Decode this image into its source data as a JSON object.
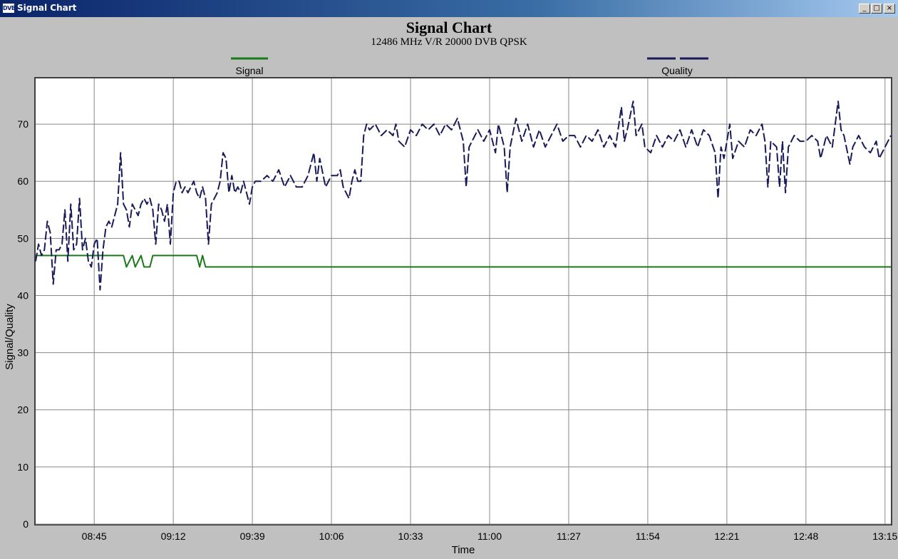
{
  "window": {
    "title": "Signal Chart",
    "icon": "DVB",
    "min_glyph": "_",
    "max_glyph": "□",
    "close_glyph": "×"
  },
  "colors": {
    "signal": "#1a7a1a",
    "quality": "#1a1a5a",
    "background": "#c0c0c0",
    "plot_area": "#ffffff",
    "grid": "#888888"
  },
  "chart_data": {
    "type": "line",
    "title": "Signal Chart",
    "subtitle": "12486 MHz V/R 20000 DVB QPSK",
    "xlabel": "Time",
    "ylabel": "Signal/Quality",
    "ylim": [
      0,
      78
    ],
    "xlim": [
      "08:25",
      "13:17"
    ],
    "yticks": [
      0,
      10,
      20,
      30,
      40,
      50,
      60,
      70
    ],
    "xticks": [
      "08:45",
      "09:12",
      "09:39",
      "10:06",
      "10:33",
      "11:00",
      "11:27",
      "11:54",
      "12:21",
      "12:48",
      "13:15"
    ],
    "grid": true,
    "legend_position": "top",
    "series": [
      {
        "name": "Signal",
        "style": "solid",
        "points": [
          [
            "08:25",
            47
          ],
          [
            "08:55",
            47
          ],
          [
            "08:56",
            45
          ],
          [
            "08:58",
            47
          ],
          [
            "08:59",
            45
          ],
          [
            "09:01",
            47
          ],
          [
            "09:02",
            45
          ],
          [
            "09:04",
            45
          ],
          [
            "09:05",
            47
          ],
          [
            "09:20",
            47
          ],
          [
            "09:21",
            45
          ],
          [
            "09:22",
            47
          ],
          [
            "09:23",
            45
          ],
          [
            "13:17",
            45
          ]
        ]
      },
      {
        "name": "Quality",
        "style": "dashed",
        "points": [
          [
            "08:25",
            46
          ],
          [
            "08:26",
            49
          ],
          [
            "08:27",
            47
          ],
          [
            "08:28",
            48
          ],
          [
            "08:29",
            53
          ],
          [
            "08:30",
            51
          ],
          [
            "08:31",
            42
          ],
          [
            "08:32",
            48
          ],
          [
            "08:33",
            48
          ],
          [
            "08:34",
            49
          ],
          [
            "08:35",
            55
          ],
          [
            "08:36",
            46
          ],
          [
            "08:37",
            56
          ],
          [
            "08:38",
            48
          ],
          [
            "08:39",
            49
          ],
          [
            "08:40",
            57
          ],
          [
            "08:41",
            48
          ],
          [
            "08:42",
            50
          ],
          [
            "08:43",
            46
          ],
          [
            "08:44",
            45
          ],
          [
            "08:45",
            49
          ],
          [
            "08:46",
            50
          ],
          [
            "08:47",
            41
          ],
          [
            "08:48",
            48
          ],
          [
            "08:49",
            52
          ],
          [
            "08:50",
            53
          ],
          [
            "08:51",
            52
          ],
          [
            "08:52",
            54
          ],
          [
            "08:53",
            56
          ],
          [
            "08:54",
            65
          ],
          [
            "08:55",
            56
          ],
          [
            "08:56",
            55
          ],
          [
            "08:57",
            52
          ],
          [
            "08:58",
            56
          ],
          [
            "08:59",
            55
          ],
          [
            "09:00",
            54
          ],
          [
            "09:01",
            56
          ],
          [
            "09:02",
            57
          ],
          [
            "09:03",
            56
          ],
          [
            "09:04",
            57
          ],
          [
            "09:05",
            55
          ],
          [
            "09:06",
            49
          ],
          [
            "09:07",
            56
          ],
          [
            "09:08",
            55
          ],
          [
            "09:09",
            53
          ],
          [
            "09:10",
            56
          ],
          [
            "09:11",
            49
          ],
          [
            "09:12",
            58
          ],
          [
            "09:13",
            60
          ],
          [
            "09:14",
            60
          ],
          [
            "09:15",
            58
          ],
          [
            "09:16",
            59
          ],
          [
            "09:17",
            58
          ],
          [
            "09:18",
            59
          ],
          [
            "09:19",
            60
          ],
          [
            "09:20",
            58
          ],
          [
            "09:21",
            57
          ],
          [
            "09:22",
            59
          ],
          [
            "09:23",
            57
          ],
          [
            "09:24",
            49
          ],
          [
            "09:25",
            56
          ],
          [
            "09:26",
            57
          ],
          [
            "09:27",
            58
          ],
          [
            "09:28",
            60
          ],
          [
            "09:29",
            65
          ],
          [
            "09:30",
            64
          ],
          [
            "09:31",
            58
          ],
          [
            "09:32",
            61
          ],
          [
            "09:33",
            58
          ],
          [
            "09:34",
            59
          ],
          [
            "09:35",
            58
          ],
          [
            "09:36",
            60
          ],
          [
            "09:37",
            58
          ],
          [
            "09:38",
            56
          ],
          [
            "09:39",
            59
          ],
          [
            "09:40",
            60
          ],
          [
            "09:42",
            60
          ],
          [
            "09:44",
            61
          ],
          [
            "09:46",
            60
          ],
          [
            "09:48",
            62
          ],
          [
            "09:50",
            59
          ],
          [
            "09:52",
            61
          ],
          [
            "09:54",
            59
          ],
          [
            "09:56",
            59
          ],
          [
            "09:58",
            61
          ],
          [
            "10:00",
            65
          ],
          [
            "10:01",
            60
          ],
          [
            "10:02",
            64
          ],
          [
            "10:04",
            59
          ],
          [
            "10:06",
            61
          ],
          [
            "10:08",
            61
          ],
          [
            "10:09",
            62
          ],
          [
            "10:10",
            59
          ],
          [
            "10:11",
            58
          ],
          [
            "10:12",
            57
          ],
          [
            "10:13",
            60
          ],
          [
            "10:14",
            62
          ],
          [
            "10:15",
            60
          ],
          [
            "10:16",
            60
          ],
          [
            "10:17",
            68
          ],
          [
            "10:18",
            70
          ],
          [
            "10:19",
            69
          ],
          [
            "10:21",
            70
          ],
          [
            "10:23",
            68
          ],
          [
            "10:25",
            69
          ],
          [
            "10:27",
            68
          ],
          [
            "10:28",
            70
          ],
          [
            "10:29",
            67
          ],
          [
            "10:31",
            66
          ],
          [
            "10:33",
            69
          ],
          [
            "10:35",
            68
          ],
          [
            "10:37",
            70
          ],
          [
            "10:39",
            69
          ],
          [
            "10:41",
            70
          ],
          [
            "10:43",
            68
          ],
          [
            "10:45",
            70
          ],
          [
            "10:47",
            69
          ],
          [
            "10:49",
            71
          ],
          [
            "10:51",
            67
          ],
          [
            "10:52",
            59
          ],
          [
            "10:53",
            66
          ],
          [
            "10:54",
            67
          ],
          [
            "10:56",
            69
          ],
          [
            "10:58",
            67
          ],
          [
            "11:00",
            69
          ],
          [
            "11:02",
            65
          ],
          [
            "11:03",
            70
          ],
          [
            "11:05",
            66
          ],
          [
            "11:06",
            58
          ],
          [
            "11:07",
            66
          ],
          [
            "11:09",
            71
          ],
          [
            "11:11",
            67
          ],
          [
            "11:13",
            70
          ],
          [
            "11:15",
            66
          ],
          [
            "11:17",
            69
          ],
          [
            "11:19",
            66
          ],
          [
            "11:21",
            68
          ],
          [
            "11:23",
            70
          ],
          [
            "11:25",
            67
          ],
          [
            "11:27",
            68
          ],
          [
            "11:29",
            68
          ],
          [
            "11:31",
            66
          ],
          [
            "11:33",
            68
          ],
          [
            "11:35",
            67
          ],
          [
            "11:37",
            69
          ],
          [
            "11:39",
            66
          ],
          [
            "11:41",
            68
          ],
          [
            "11:43",
            66
          ],
          [
            "11:45",
            73
          ],
          [
            "11:46",
            67
          ],
          [
            "11:47",
            69
          ],
          [
            "11:49",
            74
          ],
          [
            "11:50",
            68
          ],
          [
            "11:52",
            70
          ],
          [
            "11:53",
            66
          ],
          [
            "11:55",
            65
          ],
          [
            "11:57",
            68
          ],
          [
            "11:59",
            66
          ],
          [
            "12:01",
            68
          ],
          [
            "12:03",
            67
          ],
          [
            "12:05",
            69
          ],
          [
            "12:07",
            66
          ],
          [
            "12:09",
            69
          ],
          [
            "12:11",
            66
          ],
          [
            "12:13",
            69
          ],
          [
            "12:15",
            68
          ],
          [
            "12:17",
            65
          ],
          [
            "12:18",
            57
          ],
          [
            "12:19",
            66
          ],
          [
            "12:20",
            64
          ],
          [
            "12:22",
            70
          ],
          [
            "12:23",
            64
          ],
          [
            "12:25",
            67
          ],
          [
            "12:27",
            66
          ],
          [
            "12:29",
            69
          ],
          [
            "12:31",
            68
          ],
          [
            "12:33",
            70
          ],
          [
            "12:34",
            67
          ],
          [
            "12:35",
            59
          ],
          [
            "12:36",
            67
          ],
          [
            "12:38",
            66
          ],
          [
            "12:39",
            59
          ],
          [
            "12:40",
            67
          ],
          [
            "12:41",
            58
          ],
          [
            "12:42",
            66
          ],
          [
            "12:44",
            68
          ],
          [
            "12:46",
            67
          ],
          [
            "12:48",
            67
          ],
          [
            "12:50",
            68
          ],
          [
            "12:52",
            67
          ],
          [
            "12:53",
            64
          ],
          [
            "12:55",
            68
          ],
          [
            "12:57",
            66
          ],
          [
            "12:59",
            74
          ],
          [
            "13:00",
            69
          ],
          [
            "13:01",
            68
          ],
          [
            "13:03",
            63
          ],
          [
            "13:04",
            66
          ],
          [
            "13:06",
            68
          ],
          [
            "13:08",
            66
          ],
          [
            "13:10",
            65
          ],
          [
            "13:12",
            67
          ],
          [
            "13:13",
            64
          ],
          [
            "13:15",
            66
          ],
          [
            "13:17",
            68
          ]
        ]
      }
    ]
  }
}
